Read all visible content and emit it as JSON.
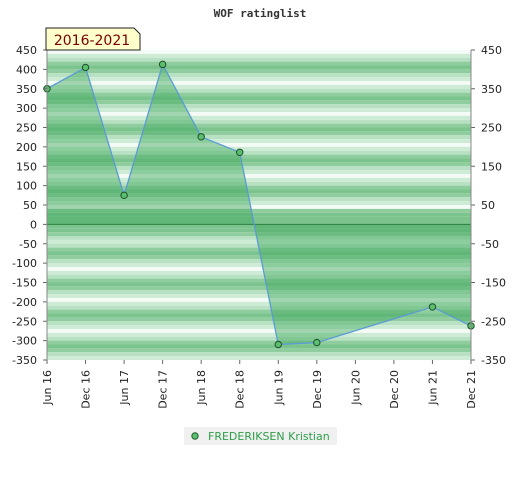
{
  "chart_data": {
    "type": "area",
    "title": "WOF ratinglist",
    "period_label": "2016-2021",
    "xlabel": "",
    "ylabel": "",
    "x_ticks": [
      "Jun 16",
      "Dec 16",
      "Jun 17",
      "Dec 17",
      "Jun 18",
      "Dec 18",
      "Jun 19",
      "Dec 19",
      "Jun 20",
      "Dec 20",
      "Jun 21",
      "Dec 21"
    ],
    "y_ticks_left": [
      "450",
      "400",
      "350",
      "300",
      "250",
      "200",
      "150",
      "100",
      "50",
      "0",
      "-50",
      "-100",
      "-150",
      "-200",
      "-250",
      "-300",
      "-350"
    ],
    "y_ticks_right": [
      "450",
      "350",
      "250",
      "150",
      "50",
      "-50",
      "-150",
      "-250",
      "-350"
    ],
    "ylim": [
      -350,
      450
    ],
    "grid": "horizontal bands",
    "legend_position": "bottom",
    "series": [
      {
        "name": "FREDERIKSEN Kristian",
        "color": "#3fa85a",
        "points": [
          {
            "x": "Jun 16",
            "y": 350
          },
          {
            "x": "Dec 16",
            "y": 405
          },
          {
            "x": "Jun 17",
            "y": 75
          },
          {
            "x": "Dec 17",
            "y": 413
          },
          {
            "x": "Jun 18",
            "y": 226
          },
          {
            "x": "Dec 18",
            "y": 186
          },
          {
            "x": "Jun 19",
            "y": -310
          },
          {
            "x": "Dec 19",
            "y": -305
          },
          {
            "x": "Jun 21",
            "y": -213
          },
          {
            "x": "Dec 21",
            "y": -262
          }
        ]
      }
    ]
  }
}
